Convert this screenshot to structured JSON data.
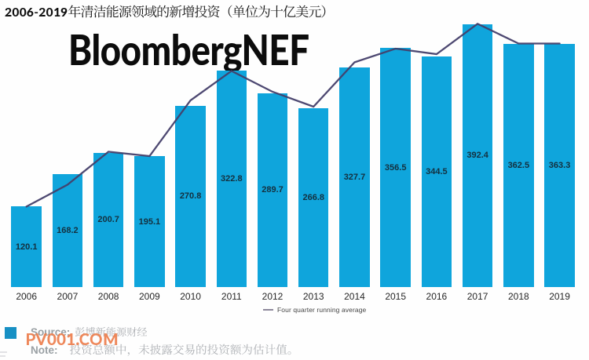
{
  "page": {
    "background": "#fefefe"
  },
  "header": {
    "title_bold": "2006-2019",
    "title_rest": "年清洁能源领域的新增投资（单位为十亿美元）",
    "brand": "BloombergNEF"
  },
  "chart_data": {
    "type": "bar",
    "title": "2006-2019年清洁能源领域的新增投资（单位为十亿美元）",
    "categories": [
      "2006",
      "2007",
      "2008",
      "2009",
      "2010",
      "2011",
      "2012",
      "2013",
      "2014",
      "2015",
      "2016",
      "2017",
      "2018",
      "2019"
    ],
    "series": [
      {
        "name": "新增投资",
        "type": "bar",
        "values": [
          120.1,
          168.2,
          200.7,
          195.1,
          270.8,
          322.8,
          289.7,
          266.8,
          327.7,
          356.5,
          344.5,
          392.4,
          362.5,
          363.3
        ]
      },
      {
        "name": "Four quarter running average",
        "type": "line",
        "values": [
          120.1,
          152.8,
          201.9,
          195.5,
          278.6,
          322.5,
          291.5,
          269.3,
          335.5,
          355.9,
          347.7,
          393.0,
          363.5,
          363.5
        ]
      }
    ],
    "bar_labels_visible": true,
    "xlabel": "",
    "ylabel": "",
    "ylim": [
      0,
      430
    ],
    "grid": false,
    "legend_position": "bottom-center",
    "bar_color": "#0fa5dc",
    "line_color": "#453f6a",
    "value_label_color": "#14303f"
  },
  "legend": {
    "line_label": "Four quarter running average"
  },
  "footer": {
    "source_label": "Source:",
    "source_text": "彭博新能源财经",
    "note_label": "Note:",
    "note_text": "投资总额中，未披露交易的投资额为估计值。"
  },
  "watermark": {
    "text": "PV001.COM",
    "color": "#ed7f4e"
  }
}
